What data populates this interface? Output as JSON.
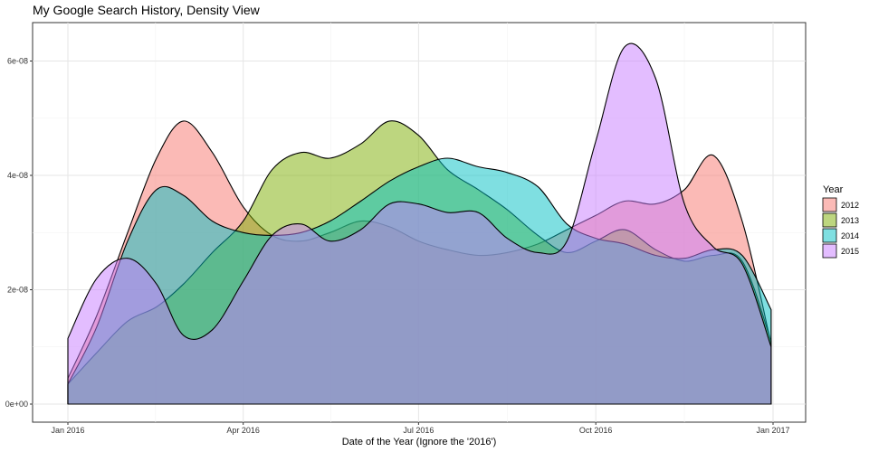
{
  "chart_data": {
    "type": "area",
    "title": "My Google Search History, Density View",
    "xlabel": "Date of the Year (Ignore the '2016')",
    "ylabel": "",
    "x_ticks": [
      "Jan 2016",
      "Apr 2016",
      "Jul 2016",
      "Oct 2016",
      "Jan 2017"
    ],
    "y_ticks": [
      "0e+00",
      "2e-08",
      "4e-08",
      "6e-08"
    ],
    "ylim": [
      0,
      6.7e-08
    ],
    "xlim": [
      "2016-01-01",
      "2017-01-01"
    ],
    "legend": {
      "title": "Year",
      "placement": "right"
    },
    "grid": true,
    "series": [
      {
        "name": "2012",
        "color": "#F8766D",
        "points": [
          [
            "2016-01-01",
            4.5e-09
          ],
          [
            "2016-01-16",
            1.55e-08
          ],
          [
            "2016-02-01",
            3e-08
          ],
          [
            "2016-02-16",
            4.3e-08
          ],
          [
            "2016-03-01",
            4.95e-08
          ],
          [
            "2016-03-16",
            4.4e-08
          ],
          [
            "2016-04-01",
            3.45e-08
          ],
          [
            "2016-04-16",
            2.95e-08
          ],
          [
            "2016-05-01",
            2.85e-08
          ],
          [
            "2016-05-16",
            3e-08
          ],
          [
            "2016-06-01",
            3.2e-08
          ],
          [
            "2016-06-16",
            3.1e-08
          ],
          [
            "2016-07-01",
            2.85e-08
          ],
          [
            "2016-07-16",
            2.7e-08
          ],
          [
            "2016-08-01",
            2.6e-08
          ],
          [
            "2016-08-16",
            2.65e-08
          ],
          [
            "2016-09-01",
            2.8e-08
          ],
          [
            "2016-09-16",
            3.05e-08
          ],
          [
            "2016-10-01",
            3.3e-08
          ],
          [
            "2016-10-16",
            3.55e-08
          ],
          [
            "2016-11-01",
            3.5e-08
          ],
          [
            "2016-11-16",
            3.75e-08
          ],
          [
            "2016-12-01",
            4.35e-08
          ],
          [
            "2016-12-16",
            3.2e-08
          ],
          [
            "2016-12-31",
            1.05e-08
          ]
        ]
      },
      {
        "name": "2013",
        "color": "#7CAE00",
        "points": [
          [
            "2016-01-01",
            3.5e-09
          ],
          [
            "2016-01-16",
            9e-09
          ],
          [
            "2016-02-01",
            1.45e-08
          ],
          [
            "2016-02-16",
            1.7e-08
          ],
          [
            "2016-03-01",
            2.1e-08
          ],
          [
            "2016-03-16",
            2.65e-08
          ],
          [
            "2016-04-01",
            3.2e-08
          ],
          [
            "2016-04-16",
            4.1e-08
          ],
          [
            "2016-05-01",
            4.4e-08
          ],
          [
            "2016-05-16",
            4.3e-08
          ],
          [
            "2016-06-01",
            4.55e-08
          ],
          [
            "2016-06-16",
            4.95e-08
          ],
          [
            "2016-07-01",
            4.7e-08
          ],
          [
            "2016-07-16",
            4.1e-08
          ],
          [
            "2016-08-01",
            3.75e-08
          ],
          [
            "2016-08-16",
            3.4e-08
          ],
          [
            "2016-09-01",
            2.95e-08
          ],
          [
            "2016-09-16",
            2.65e-08
          ],
          [
            "2016-10-01",
            2.85e-08
          ],
          [
            "2016-10-16",
            3.05e-08
          ],
          [
            "2016-11-01",
            2.7e-08
          ],
          [
            "2016-11-16",
            2.5e-08
          ],
          [
            "2016-12-01",
            2.6e-08
          ],
          [
            "2016-12-16",
            2.5e-08
          ],
          [
            "2016-12-31",
            1.1e-08
          ]
        ]
      },
      {
        "name": "2014",
        "color": "#00BFC4",
        "points": [
          [
            "2016-01-01",
            3.5e-09
          ],
          [
            "2016-01-16",
            1.35e-08
          ],
          [
            "2016-02-01",
            2.85e-08
          ],
          [
            "2016-02-16",
            3.75e-08
          ],
          [
            "2016-03-01",
            3.65e-08
          ],
          [
            "2016-03-16",
            3.2e-08
          ],
          [
            "2016-04-01",
            3e-08
          ],
          [
            "2016-04-16",
            2.95e-08
          ],
          [
            "2016-05-01",
            3e-08
          ],
          [
            "2016-05-16",
            3.2e-08
          ],
          [
            "2016-06-01",
            3.55e-08
          ],
          [
            "2016-06-16",
            3.9e-08
          ],
          [
            "2016-07-01",
            4.15e-08
          ],
          [
            "2016-07-16",
            4.3e-08
          ],
          [
            "2016-08-01",
            4.15e-08
          ],
          [
            "2016-08-16",
            4.05e-08
          ],
          [
            "2016-09-01",
            3.8e-08
          ],
          [
            "2016-09-16",
            3.15e-08
          ],
          [
            "2016-10-01",
            2.9e-08
          ],
          [
            "2016-10-16",
            2.8e-08
          ],
          [
            "2016-11-01",
            2.6e-08
          ],
          [
            "2016-11-16",
            2.55e-08
          ],
          [
            "2016-12-01",
            2.7e-08
          ],
          [
            "2016-12-16",
            2.6e-08
          ],
          [
            "2016-12-31",
            1.65e-08
          ]
        ]
      },
      {
        "name": "2015",
        "color": "#C77CFF",
        "points": [
          [
            "2016-01-01",
            1.15e-08
          ],
          [
            "2016-01-16",
            2.2e-08
          ],
          [
            "2016-02-01",
            2.55e-08
          ],
          [
            "2016-02-16",
            2.1e-08
          ],
          [
            "2016-03-01",
            1.2e-08
          ],
          [
            "2016-03-16",
            1.3e-08
          ],
          [
            "2016-04-01",
            2.15e-08
          ],
          [
            "2016-04-16",
            2.95e-08
          ],
          [
            "2016-05-01",
            3.15e-08
          ],
          [
            "2016-05-16",
            2.85e-08
          ],
          [
            "2016-06-01",
            3.05e-08
          ],
          [
            "2016-06-16",
            3.5e-08
          ],
          [
            "2016-07-01",
            3.5e-08
          ],
          [
            "2016-07-16",
            3.35e-08
          ],
          [
            "2016-08-01",
            3.35e-08
          ],
          [
            "2016-08-16",
            2.9e-08
          ],
          [
            "2016-09-01",
            2.65e-08
          ],
          [
            "2016-09-16",
            2.85e-08
          ],
          [
            "2016-10-01",
            4.6e-08
          ],
          [
            "2016-10-16",
            6.25e-08
          ],
          [
            "2016-11-01",
            5.7e-08
          ],
          [
            "2016-11-16",
            3.5e-08
          ],
          [
            "2016-12-01",
            2.75e-08
          ],
          [
            "2016-12-16",
            2.45e-08
          ],
          [
            "2016-12-31",
            1e-08
          ]
        ]
      }
    ]
  }
}
